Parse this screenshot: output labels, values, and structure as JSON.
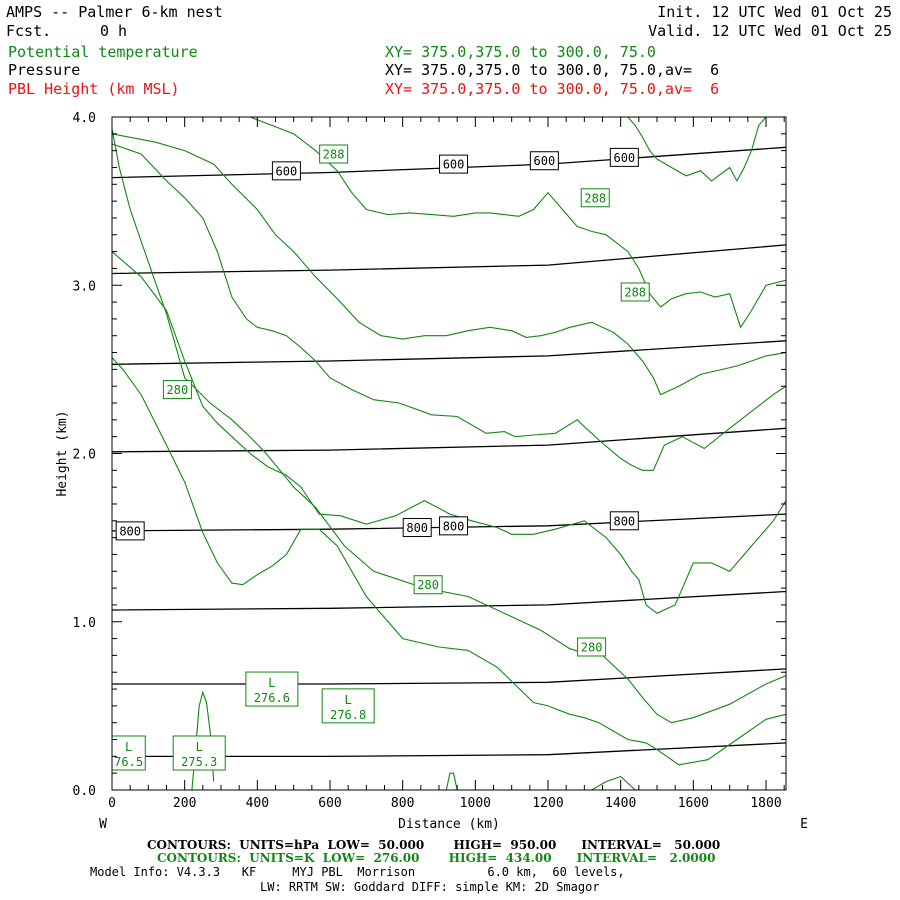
{
  "header": {
    "title": "AMPS -- Palmer 6-km nest",
    "fcst_label": "Fcst.",
    "fcst_value": "0 h",
    "init": "Init. 12 UTC Wed 01 Oct 25",
    "valid": "Valid. 12 UTC Wed 01 Oct 25"
  },
  "fields": [
    {
      "name": "Potential temperature",
      "xy": "XY= 375.0,375.0 to 300.0, 75.0",
      "color": "#118811"
    },
    {
      "name": "Pressure",
      "xy": "XY= 375.0,375.0 to 300.0, 75.0,av=  6",
      "color": "#000000"
    },
    {
      "name": "PBL Height (km MSL)",
      "xy": "XY= 375.0,375.0 to 300.0, 75.0,av=  6",
      "color": "#ee1111"
    }
  ],
  "chart_data": {
    "type": "line",
    "title": "AMPS -- Palmer 6-km nest",
    "xlabel": "Distance (km)",
    "ylabel": "Height (km)",
    "xlim": [
      0,
      1855
    ],
    "ylim": [
      0,
      4.0
    ],
    "x_ticks": [
      "0",
      "200",
      "400",
      "600",
      "800",
      "1000",
      "1200",
      "1400",
      "1600",
      "1800"
    ],
    "x_tick_values": [
      0,
      200,
      400,
      600,
      800,
      1000,
      1200,
      1400,
      1600,
      1800
    ],
    "y_ticks": [
      "0.0",
      "1.0",
      "2.0",
      "3.0",
      "4.0"
    ],
    "y_tick_values": [
      0,
      1,
      2,
      3,
      4
    ],
    "x_left_label": "W",
    "x_right_label": "E",
    "series": [
      {
        "name": "Pressure (hPa)",
        "color": "#000000",
        "lines": [
          {
            "value": 950,
            "x": [
              0,
              600,
              1200,
              1855
            ],
            "y": [
              0.2,
              0.2,
              0.21,
              0.28
            ]
          },
          {
            "value": 900,
            "x": [
              0,
              600,
              1200,
              1855
            ],
            "y": [
              0.63,
              0.63,
              0.64,
              0.72
            ]
          },
          {
            "value": 850,
            "x": [
              0,
              600,
              1200,
              1855
            ],
            "y": [
              1.07,
              1.08,
              1.1,
              1.18
            ]
          },
          {
            "value": 800,
            "x": [
              0,
              600,
              1200,
              1855
            ],
            "y": [
              1.54,
              1.55,
              1.57,
              1.64
            ]
          },
          {
            "value": 750,
            "x": [
              0,
              600,
              1200,
              1855
            ],
            "y": [
              2.01,
              2.02,
              2.05,
              2.15
            ]
          },
          {
            "value": 700,
            "x": [
              0,
              600,
              1200,
              1855
            ],
            "y": [
              2.53,
              2.55,
              2.58,
              2.67
            ]
          },
          {
            "value": 650,
            "x": [
              0,
              600,
              1200,
              1855
            ],
            "y": [
              3.07,
              3.09,
              3.12,
              3.24
            ]
          },
          {
            "value": 600,
            "x": [
              0,
              600,
              1200,
              1855
            ],
            "y": [
              3.64,
              3.67,
              3.72,
              3.82
            ]
          }
        ]
      },
      {
        "name": "Potential temperature (K)",
        "color": "#118811",
        "lines": [
          {
            "x": [
              0,
              20,
              50,
              90,
              150,
              200,
              270,
              330,
              370,
              420,
              470,
              500,
              560,
              640,
              720,
              860,
              980,
              1100,
              1180,
              1260,
              1320,
              1350,
              1380,
              1420,
              1460,
              1500,
              1540,
              1600,
              1700,
              1800,
              1855
            ],
            "y": [
              3.93,
              3.7,
              3.45,
              3.2,
              2.83,
              2.45,
              2.3,
              2.2,
              2.12,
              2.01,
              1.88,
              1.8,
              1.68,
              1.45,
              1.3,
              1.2,
              1.15,
              1.03,
              0.95,
              0.84,
              0.8,
              0.8,
              0.74,
              0.66,
              0.55,
              0.45,
              0.4,
              0.43,
              0.51,
              0.63,
              0.68
            ]
          },
          {
            "x": [
              0,
              30,
              80,
              150,
              200,
              250,
              290,
              330,
              360,
              400,
              440,
              480,
              520,
              570,
              620,
              700,
              800,
              900,
              980,
              1060,
              1160,
              1200,
              1260,
              1300,
              1340,
              1380,
              1420,
              1470,
              1500,
              1560,
              1640,
              1720,
              1800,
              1855
            ],
            "y": [
              2.57,
              2.5,
              2.35,
              2.05,
              1.83,
              1.53,
              1.35,
              1.23,
              1.22,
              1.28,
              1.33,
              1.4,
              1.55,
              1.55,
              1.45,
              1.15,
              0.9,
              0.85,
              0.83,
              0.73,
              0.52,
              0.5,
              0.45,
              0.43,
              0.4,
              0.35,
              0.3,
              0.28,
              0.24,
              0.15,
              0.18,
              0.3,
              0.42,
              0.45
            ]
          },
          {
            "x": [
              0,
              80,
              150,
              200,
              250,
              290,
              330,
              380,
              430,
              480,
              520,
              570,
              630,
              700,
              780,
              860,
              930,
              990,
              1060,
              1100,
              1160,
              1220,
              1300,
              1360,
              1400,
              1430,
              1450,
              1470,
              1500,
              1550,
              1600,
              1650,
              1700,
              1760,
              1820,
              1855
            ],
            "y": [
              3.2,
              3.05,
              2.85,
              2.55,
              2.28,
              2.18,
              2.1,
              2.0,
              1.92,
              1.87,
              1.8,
              1.64,
              1.63,
              1.58,
              1.63,
              1.72,
              1.64,
              1.6,
              1.56,
              1.52,
              1.52,
              1.55,
              1.6,
              1.5,
              1.4,
              1.3,
              1.25,
              1.1,
              1.05,
              1.1,
              1.35,
              1.35,
              1.3,
              1.45,
              1.6,
              1.72
            ]
          },
          {
            "x": [
              0,
              80,
              150,
              200,
              250,
              290,
              330,
              370,
              400,
              440,
              480,
              520,
              560,
              600,
              660,
              720,
              790,
              880,
              950,
              1030,
              1080,
              1110,
              1160,
              1220,
              1280,
              1340,
              1400,
              1430,
              1460,
              1490,
              1520,
              1570,
              1630,
              1700,
              1760,
              1820,
              1855
            ],
            "y": [
              3.84,
              3.78,
              3.62,
              3.52,
              3.4,
              3.2,
              2.93,
              2.8,
              2.75,
              2.73,
              2.7,
              2.63,
              2.55,
              2.45,
              2.38,
              2.32,
              2.3,
              2.23,
              2.22,
              2.12,
              2.13,
              2.1,
              2.11,
              2.12,
              2.2,
              2.08,
              1.97,
              1.93,
              1.9,
              1.9,
              2.05,
              2.1,
              2.03,
              2.15,
              2.25,
              2.35,
              2.4
            ]
          },
          {
            "x": [
              0,
              120,
              200,
              280,
              330,
              400,
              450,
              500,
              560,
              620,
              680,
              740,
              800,
              860,
              920,
              980,
              1040,
              1100,
              1140,
              1180,
              1220,
              1260,
              1320,
              1380,
              1420,
              1460,
              1490,
              1510,
              1560,
              1620,
              1680,
              1720,
              1760,
              1800,
              1855
            ],
            "y": [
              3.9,
              3.85,
              3.8,
              3.72,
              3.6,
              3.45,
              3.3,
              3.2,
              3.05,
              2.92,
              2.78,
              2.7,
              2.68,
              2.7,
              2.7,
              2.73,
              2.75,
              2.73,
              2.69,
              2.7,
              2.72,
              2.75,
              2.78,
              2.72,
              2.65,
              2.55,
              2.45,
              2.35,
              2.4,
              2.47,
              2.5,
              2.52,
              2.55,
              2.58,
              2.6
            ]
          },
          {
            "x": [
              380,
              440,
              500,
              560,
              620,
              660,
              700,
              760,
              820,
              880,
              940,
              1000,
              1040,
              1080,
              1120,
              1160,
              1200,
              1240,
              1280,
              1320,
              1360,
              1390,
              1420,
              1450,
              1480,
              1510,
              1540,
              1580,
              1620,
              1660,
              1700,
              1730,
              1760,
              1800,
              1855
            ],
            "y": [
              4.0,
              3.95,
              3.9,
              3.8,
              3.68,
              3.55,
              3.45,
              3.42,
              3.43,
              3.42,
              3.41,
              3.43,
              3.43,
              3.42,
              3.41,
              3.45,
              3.55,
              3.45,
              3.35,
              3.32,
              3.3,
              3.25,
              3.2,
              3.1,
              2.95,
              2.87,
              2.92,
              2.95,
              2.96,
              2.93,
              2.95,
              2.75,
              2.85,
              3.0,
              3.03
            ]
          },
          {
            "x": [
              1420,
              1440,
              1460,
              1480,
              1500,
              1540,
              1580,
              1620,
              1650,
              1700,
              1720,
              1740,
              1760,
              1780,
              1800
            ],
            "y": [
              4.0,
              3.95,
              3.88,
              3.8,
              3.75,
              3.7,
              3.65,
              3.68,
              3.62,
              3.7,
              3.62,
              3.7,
              3.8,
              3.95,
              4.0
            ]
          },
          {
            "x": [
              220,
              230,
              240,
              250,
              260,
              270,
              280
            ],
            "y": [
              0.0,
              0.25,
              0.5,
              0.58,
              0.52,
              0.35,
              0.05
            ]
          },
          {
            "x": [
              920,
              930,
              940,
              950
            ],
            "y": [
              0.0,
              0.1,
              0.1,
              0.0
            ]
          },
          {
            "x": [
              1320,
              1360,
              1400,
              1440
            ],
            "y": [
              0.0,
              0.05,
              0.08,
              0.0
            ]
          }
        ]
      }
    ],
    "contour_labels": [
      {
        "text": "600",
        "x": 480,
        "y": 3.68,
        "color": "#000000"
      },
      {
        "text": "600",
        "x": 940,
        "y": 3.72,
        "color": "#000000"
      },
      {
        "text": "600",
        "x": 1190,
        "y": 3.74,
        "color": "#000000"
      },
      {
        "text": "600",
        "x": 1410,
        "y": 3.76,
        "color": "#000000"
      },
      {
        "text": "800",
        "x": 50,
        "y": 1.54,
        "color": "#000000"
      },
      {
        "text": "800",
        "x": 840,
        "y": 1.56,
        "color": "#000000"
      },
      {
        "text": "800",
        "x": 940,
        "y": 1.57,
        "color": "#000000"
      },
      {
        "text": "800",
        "x": 1410,
        "y": 1.6,
        "color": "#000000"
      },
      {
        "text": "288",
        "x": 610,
        "y": 3.78,
        "color": "#118811"
      },
      {
        "text": "288",
        "x": 1330,
        "y": 3.52,
        "color": "#118811"
      },
      {
        "text": "288",
        "x": 1440,
        "y": 2.96,
        "color": "#118811"
      },
      {
        "text": "280",
        "x": 180,
        "y": 2.38,
        "color": "#118811"
      },
      {
        "text": "280",
        "x": 870,
        "y": 1.22,
        "color": "#118811"
      },
      {
        "text": "280",
        "x": 1320,
        "y": 0.85,
        "color": "#118811"
      }
    ],
    "extrema": [
      {
        "letter": "L",
        "value": "276.6",
        "x": 440,
        "y": 0.6
      },
      {
        "letter": "L",
        "value": "276.8",
        "x": 650,
        "y": 0.5
      },
      {
        "letter": "L",
        "value": "275.3",
        "x": 240,
        "y": 0.22
      },
      {
        "letter": "L",
        "value": "76.5",
        "x": 20,
        "y": 0.22
      }
    ]
  },
  "footer": {
    "contours_p": "CONTOURS:  UNITS=hPa  LOW=  50.000       HIGH=  950.00      INTERVAL=   50.000",
    "contours_t": "CONTOURS:  UNITS=K  LOW=  276.00       HIGH=  434.00      INTERVAL=   2.0000",
    "model_info": "Model Info: V4.3.3   KF     MYJ PBL  Morrison          6.0 km,  60 levels,",
    "physics": "LW: RRTM SW: Goddard DIFF: simple KM: 2D Smagor"
  }
}
